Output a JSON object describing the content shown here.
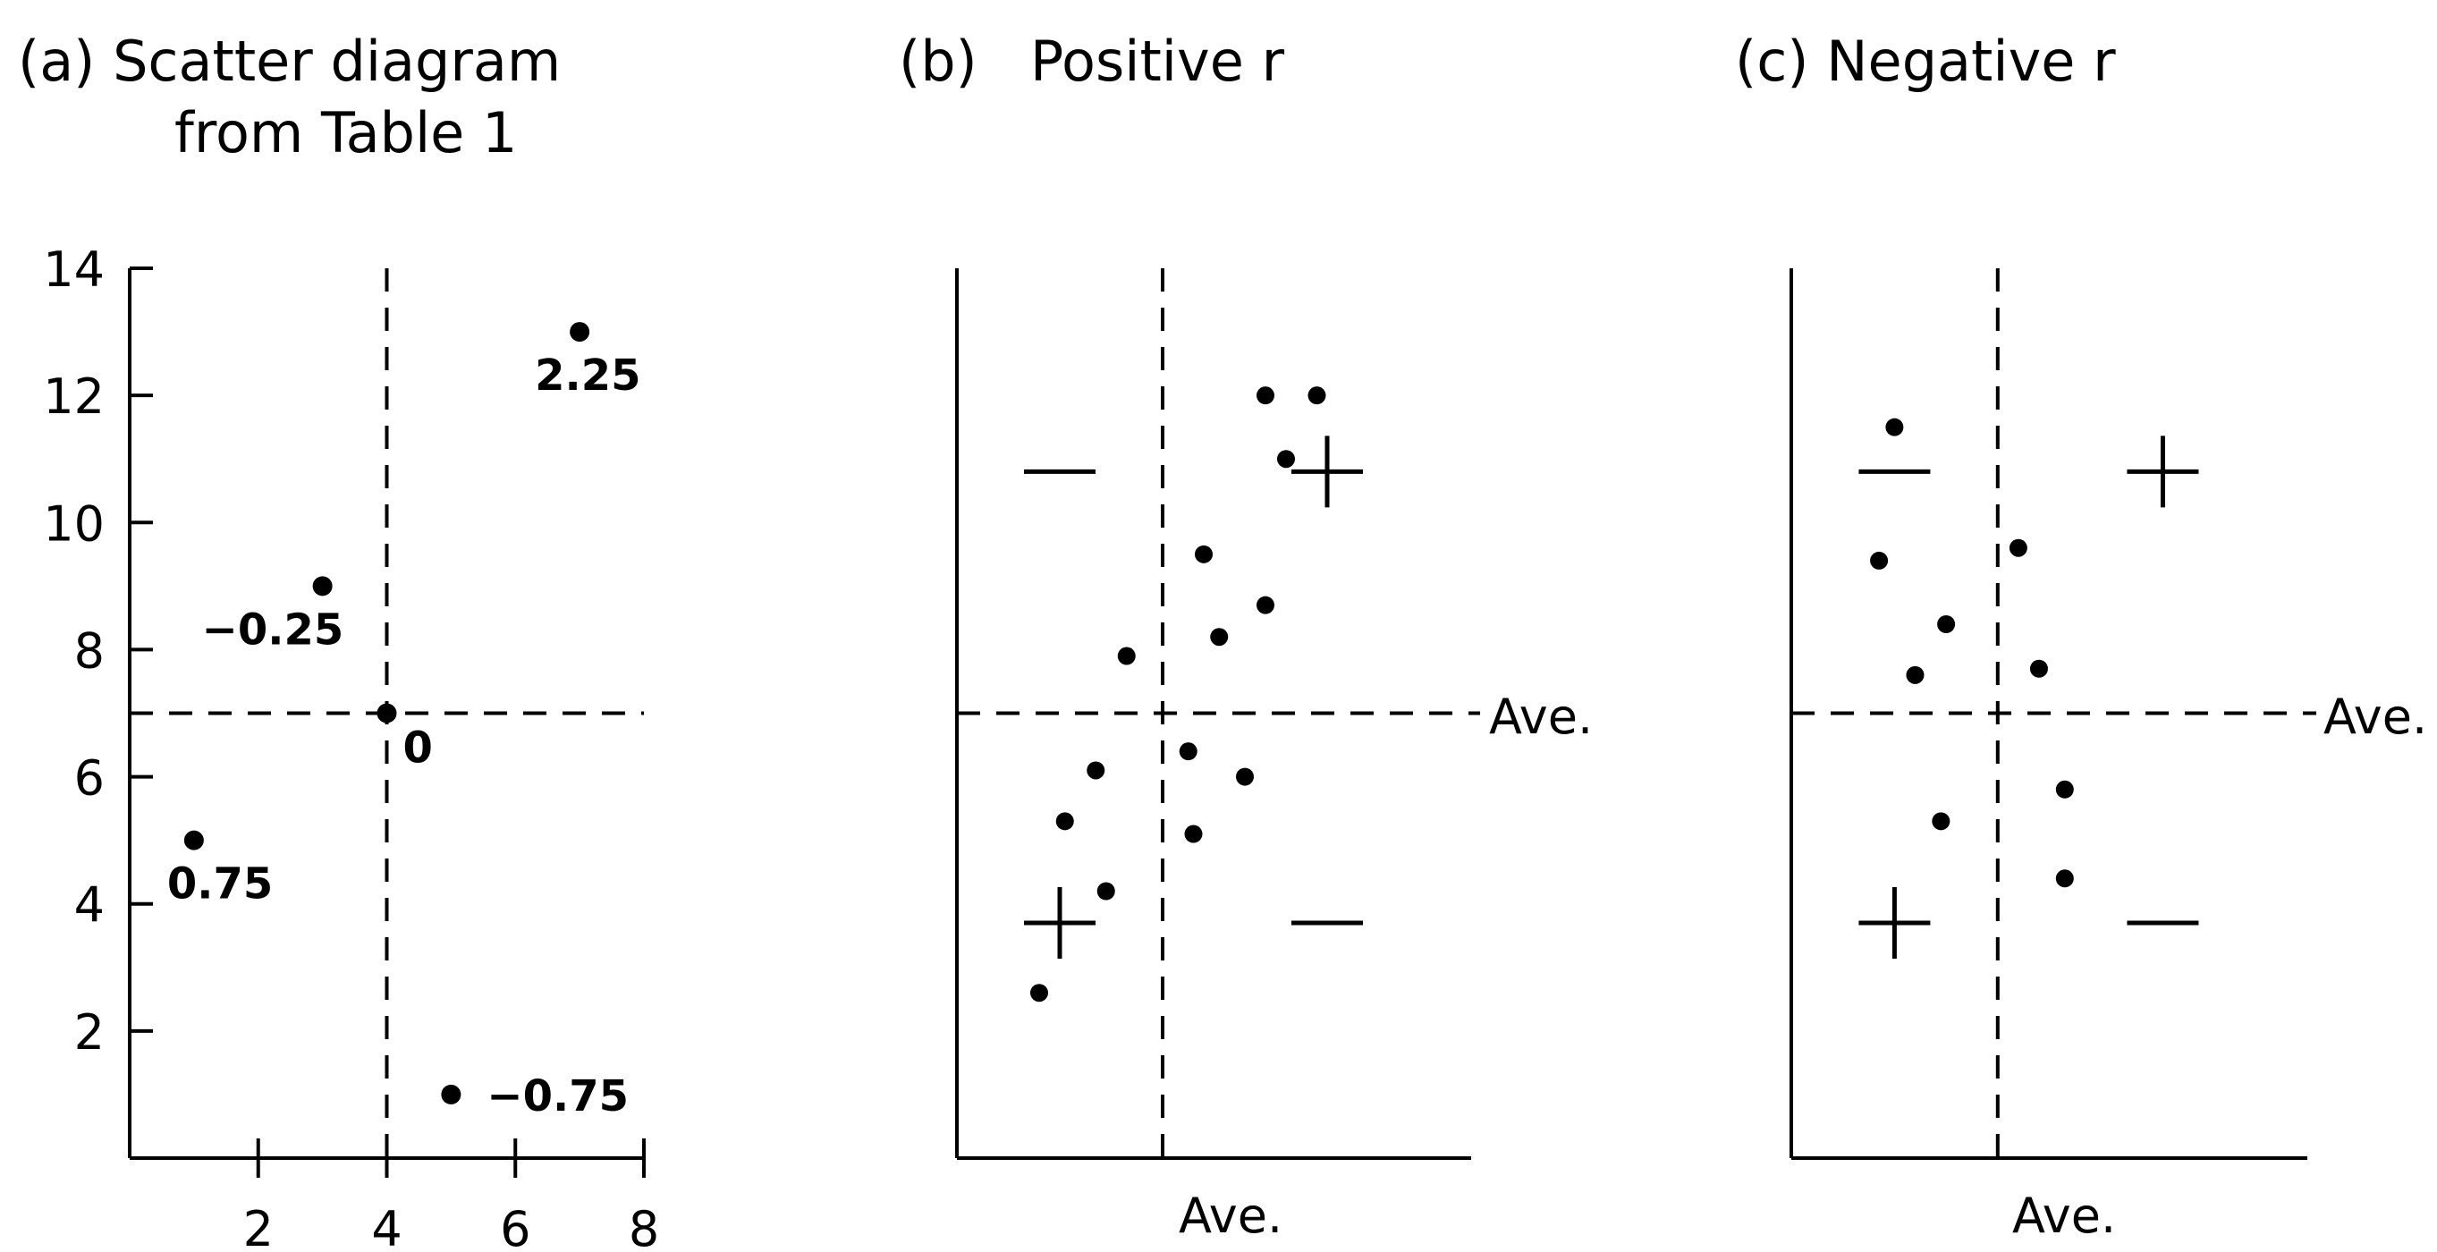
{
  "chart_data": [
    {
      "panel": "a",
      "type": "scatter",
      "title_line1": "(a) Scatter diagram",
      "title_line2": "from Table 1",
      "xlabel": "",
      "ylabel": "",
      "xlim": [
        0,
        8
      ],
      "ylim": [
        0,
        14
      ],
      "x_ticks": [
        "2",
        "4",
        "6",
        "8"
      ],
      "y_ticks": [
        "2",
        "4",
        "6",
        "8",
        "10",
        "12",
        "14"
      ],
      "x_tick_values": [
        2,
        4,
        6,
        8
      ],
      "y_tick_values": [
        2,
        4,
        6,
        8,
        10,
        12,
        14
      ],
      "average_lines": {
        "x": 4,
        "y": 7
      },
      "points": [
        {
          "x": 1,
          "y": 5,
          "label": "0.75"
        },
        {
          "x": 3,
          "y": 9,
          "label": "−0.25"
        },
        {
          "x": 4,
          "y": 7,
          "label": "0"
        },
        {
          "x": 5,
          "y": 1,
          "label": "−0.75"
        },
        {
          "x": 7,
          "y": 13,
          "label": "2.25"
        }
      ]
    },
    {
      "panel": "b",
      "type": "scatter",
      "title": "(b)   Positive r",
      "xlabel": "Ave.",
      "ave_label": "Ave.",
      "xlim": [
        0,
        10
      ],
      "ylim": [
        0,
        14
      ],
      "average_lines": {
        "x": 4,
        "y": 7
      },
      "quadrant_signs": [
        {
          "quadrant": "upper-left",
          "sign": "−"
        },
        {
          "quadrant": "upper-right",
          "sign": "+"
        },
        {
          "quadrant": "lower-left",
          "sign": "+"
        },
        {
          "quadrant": "lower-right",
          "sign": "−"
        }
      ],
      "points": [
        {
          "x": 1.6,
          "y": 2.6
        },
        {
          "x": 2.1,
          "y": 5.3
        },
        {
          "x": 2.7,
          "y": 6.1
        },
        {
          "x": 2.9,
          "y": 4.2
        },
        {
          "x": 3.3,
          "y": 7.9
        },
        {
          "x": 4.5,
          "y": 6.4
        },
        {
          "x": 4.6,
          "y": 5.1
        },
        {
          "x": 4.8,
          "y": 9.5
        },
        {
          "x": 5.1,
          "y": 8.2
        },
        {
          "x": 5.6,
          "y": 6.0
        },
        {
          "x": 6.0,
          "y": 8.7
        },
        {
          "x": 6.0,
          "y": 12.0
        },
        {
          "x": 6.4,
          "y": 11.0
        },
        {
          "x": 7.0,
          "y": 12.0
        }
      ]
    },
    {
      "panel": "c",
      "type": "scatter",
      "title": "(c) Negative r",
      "xlabel": "Ave.",
      "ave_label": "Ave.",
      "xlim": [
        0,
        10
      ],
      "ylim": [
        0,
        14
      ],
      "average_lines": {
        "x": 4,
        "y": 7
      },
      "quadrant_signs": [
        {
          "quadrant": "upper-left",
          "sign": "−"
        },
        {
          "quadrant": "upper-right",
          "sign": "+"
        },
        {
          "quadrant": "lower-left",
          "sign": "+"
        },
        {
          "quadrant": "lower-right",
          "sign": "−"
        }
      ],
      "points": [
        {
          "x": 1.7,
          "y": 9.4
        },
        {
          "x": 2.0,
          "y": 11.5
        },
        {
          "x": 2.4,
          "y": 7.6
        },
        {
          "x": 2.9,
          "y": 5.3
        },
        {
          "x": 3.0,
          "y": 8.4
        },
        {
          "x": 4.4,
          "y": 9.6
        },
        {
          "x": 4.8,
          "y": 7.7
        },
        {
          "x": 5.3,
          "y": 5.8
        },
        {
          "x": 5.3,
          "y": 4.4
        }
      ]
    }
  ]
}
